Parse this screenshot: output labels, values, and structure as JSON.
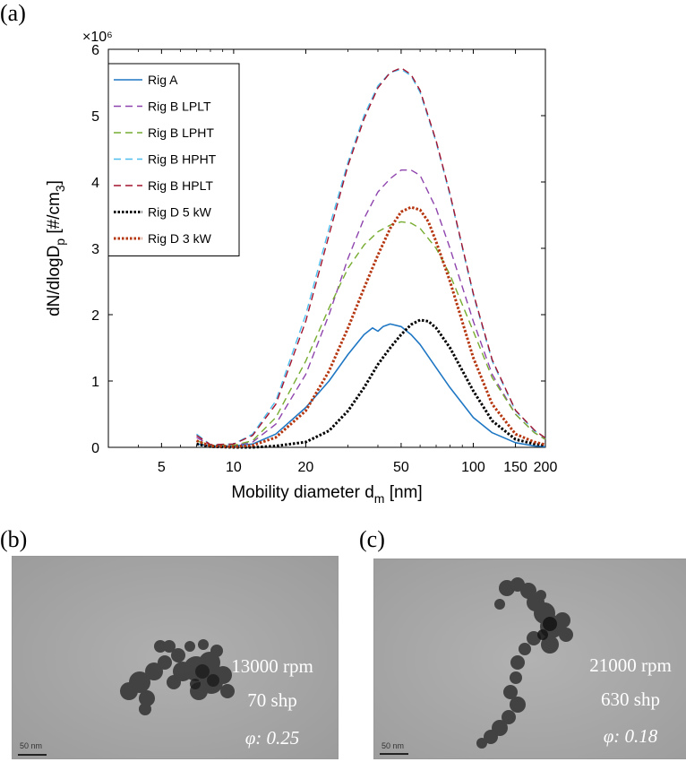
{
  "panels": {
    "a": "(a)",
    "b": "(b)",
    "c": "(c)"
  },
  "chart_data": {
    "type": "line",
    "xscale": "log",
    "xlim": [
      3,
      200
    ],
    "ylim": [
      0,
      6
    ],
    "xticks": [
      5,
      10,
      20,
      50,
      100,
      150,
      200
    ],
    "xtick_labels": [
      "5",
      "10",
      "20",
      "50",
      "100",
      "150",
      "200"
    ],
    "yticks": [
      0,
      1,
      2,
      3,
      4,
      5,
      6
    ],
    "ytick_labels": [
      "0",
      "1",
      "2",
      "3",
      "4",
      "5",
      "6"
    ],
    "y_multiplier": "×10⁶",
    "xlabel": "Mobility diameter d",
    "xlabel_sub": "m",
    "xlabel_unit": " [nm]",
    "ylabel": "dN/dlogD",
    "ylabel_sub": "p",
    "ylabel_unit": " [#/cm",
    "ylabel_unit_sub": "3",
    "ylabel_close": "]",
    "legend_position": "top-left",
    "series": [
      {
        "name": "Rig A",
        "color": "#1f77c4",
        "style": "solid",
        "width": 1.6,
        "x": [
          7,
          8,
          10,
          12,
          15,
          20,
          25,
          30,
          35,
          38,
          40,
          42,
          45,
          50,
          55,
          60,
          70,
          80,
          100,
          120,
          150,
          180,
          200
        ],
        "y": [
          0.05,
          0.02,
          0.02,
          0.05,
          0.2,
          0.6,
          1.0,
          1.4,
          1.7,
          1.8,
          1.75,
          1.82,
          1.86,
          1.82,
          1.7,
          1.55,
          1.2,
          0.9,
          0.45,
          0.22,
          0.07,
          0.02,
          0.01
        ]
      },
      {
        "name": "Rig B LPLT",
        "color": "#8e44ad",
        "style": "dash",
        "width": 1.4,
        "x": [
          7,
          8,
          10,
          12,
          15,
          20,
          25,
          30,
          35,
          40,
          45,
          50,
          55,
          60,
          70,
          80,
          100,
          120,
          150,
          180,
          200
        ],
        "y": [
          0.15,
          0.03,
          0.03,
          0.08,
          0.35,
          1.1,
          2.0,
          2.85,
          3.45,
          3.85,
          4.05,
          4.18,
          4.18,
          4.1,
          3.6,
          3.0,
          1.9,
          1.1,
          0.5,
          0.22,
          0.12
        ]
      },
      {
        "name": "Rig B LPHT",
        "color": "#77ac30",
        "style": "dash",
        "width": 1.4,
        "x": [
          7,
          8,
          10,
          12,
          15,
          20,
          25,
          30,
          35,
          40,
          45,
          50,
          55,
          60,
          70,
          80,
          100,
          120,
          150,
          180,
          200
        ],
        "y": [
          0.1,
          0.03,
          0.03,
          0.1,
          0.45,
          1.3,
          2.1,
          2.7,
          3.05,
          3.25,
          3.35,
          3.4,
          3.38,
          3.3,
          3.0,
          2.6,
          1.75,
          1.05,
          0.5,
          0.22,
          0.12
        ]
      },
      {
        "name": "Rig B HPHT",
        "color": "#4dbeee",
        "style": "dash",
        "width": 1.4,
        "x": [
          7,
          8,
          10,
          12,
          15,
          20,
          25,
          30,
          35,
          40,
          45,
          50,
          55,
          60,
          70,
          80,
          100,
          120,
          150,
          180,
          200
        ],
        "y": [
          0.2,
          0.04,
          0.05,
          0.2,
          0.7,
          2.0,
          3.3,
          4.3,
          5.0,
          5.45,
          5.65,
          5.7,
          5.6,
          5.35,
          4.6,
          3.8,
          2.3,
          1.3,
          0.55,
          0.25,
          0.14
        ]
      },
      {
        "name": "Rig B HPLT",
        "color": "#a2142f",
        "style": "dash",
        "width": 1.4,
        "x": [
          7,
          8,
          10,
          12,
          15,
          20,
          25,
          30,
          35,
          40,
          45,
          50,
          55,
          60,
          70,
          80,
          100,
          120,
          150,
          180,
          200
        ],
        "y": [
          0.18,
          0.04,
          0.05,
          0.18,
          0.65,
          1.9,
          3.2,
          4.25,
          4.95,
          5.42,
          5.65,
          5.72,
          5.62,
          5.38,
          4.62,
          3.82,
          2.32,
          1.32,
          0.56,
          0.26,
          0.14
        ]
      },
      {
        "name": "Rig D 5 kW",
        "color": "#000000",
        "style": "dot",
        "width": 3,
        "x": [
          7,
          8,
          10,
          12,
          15,
          20,
          25,
          30,
          35,
          40,
          45,
          50,
          55,
          60,
          65,
          70,
          80,
          100,
          120,
          150,
          180,
          200
        ],
        "y": [
          0.05,
          0.01,
          0.0,
          0.0,
          0.02,
          0.08,
          0.25,
          0.55,
          0.9,
          1.25,
          1.5,
          1.7,
          1.85,
          1.92,
          1.9,
          1.8,
          1.5,
          0.85,
          0.4,
          0.12,
          0.05,
          0.03
        ]
      },
      {
        "name": "Rig D 3 kW",
        "color": "#b5360f",
        "style": "dot",
        "width": 3,
        "x": [
          7,
          8,
          10,
          12,
          15,
          20,
          25,
          30,
          35,
          40,
          45,
          50,
          55,
          60,
          65,
          70,
          80,
          100,
          120,
          150,
          180,
          200
        ],
        "y": [
          0.1,
          0.02,
          0.01,
          0.03,
          0.15,
          0.55,
          1.15,
          1.8,
          2.4,
          2.9,
          3.3,
          3.55,
          3.62,
          3.58,
          3.4,
          3.1,
          2.5,
          1.35,
          0.65,
          0.2,
          0.08,
          0.04
        ]
      }
    ]
  },
  "tem_b": {
    "rpm": "13000 rpm",
    "shp": "70 shp",
    "phi": "φ: 0.25",
    "scale": "50 nm"
  },
  "tem_c": {
    "rpm": "21000 rpm",
    "shp": "630 shp",
    "phi": "φ: 0.18",
    "scale": "50 nm"
  },
  "colors": {
    "tem_background": "#a9a9a9",
    "particle_dark": "#2a2a2a"
  }
}
